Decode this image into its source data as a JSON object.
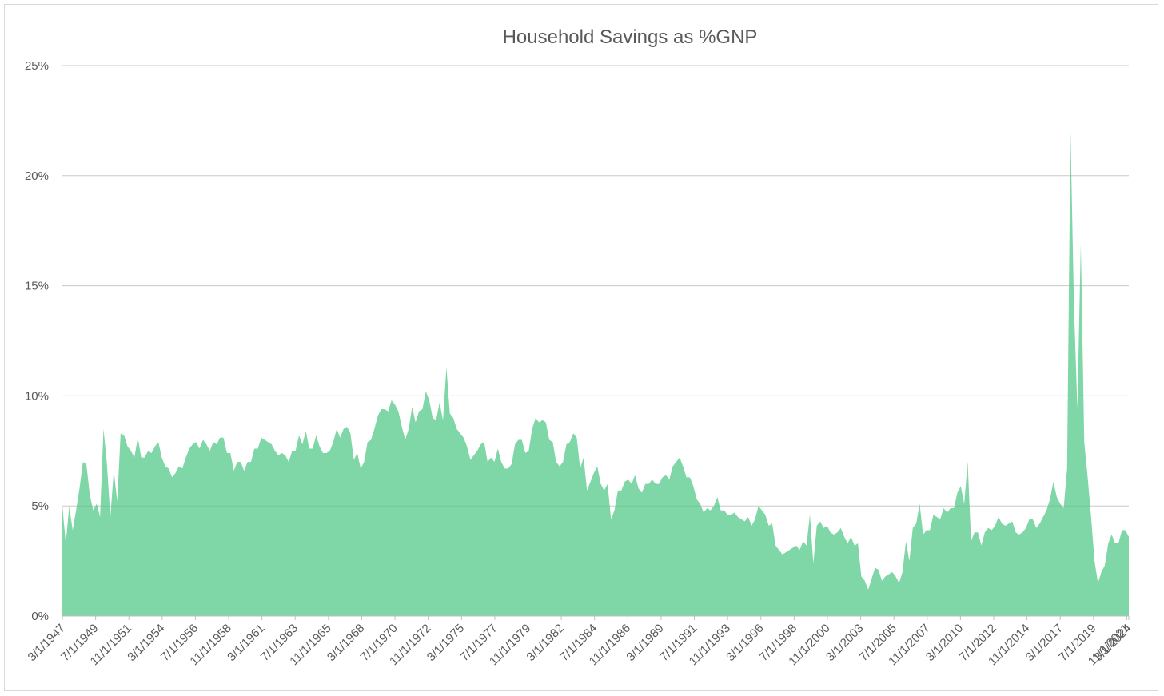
{
  "chart_data": {
    "type": "area",
    "title": "Household Savings as %GNP",
    "xlabel": "",
    "ylabel": "",
    "ylim": [
      0,
      25
    ],
    "y_tick_labels": [
      "0%",
      "5%",
      "10%",
      "15%",
      "20%",
      "25%"
    ],
    "x_tick_labels": [
      "3/1/1947",
      "7/1/1949",
      "11/1/1951",
      "3/1/1954",
      "7/1/1956",
      "11/1/1958",
      "3/1/1961",
      "7/1/1963",
      "11/1/1965",
      "3/1/1968",
      "7/1/1970",
      "11/1/1972",
      "3/1/1975",
      "7/1/1977",
      "11/1/1979",
      "3/1/1982",
      "7/1/1984",
      "11/1/1986",
      "3/1/1989",
      "7/1/1991",
      "11/1/1993",
      "3/1/1996",
      "7/1/1998",
      "11/1/2000",
      "3/1/2003",
      "7/1/2005",
      "11/1/2007",
      "3/1/2010",
      "7/1/2012",
      "11/1/2014",
      "3/1/2017",
      "7/1/2019",
      "11/1/2021",
      "3/1/2024"
    ],
    "grid": true,
    "legend": "none",
    "color": "#7fd6a6",
    "series": [
      {
        "x": [
          "1947-03",
          "1947-06",
          "1947-09",
          "1947-12",
          "1948-03",
          "1948-06",
          "1948-09",
          "1948-12",
          "1949-03",
          "1949-06",
          "1949-09",
          "1949-12",
          "1950-03",
          "1950-06",
          "1950-09",
          "1950-12",
          "1951-03",
          "1951-06",
          "1951-09",
          "1951-12",
          "1952-03",
          "1952-06",
          "1952-09",
          "1952-12",
          "1953-03",
          "1953-06",
          "1953-09",
          "1953-12",
          "1954-03",
          "1954-06",
          "1954-09",
          "1954-12",
          "1955-03",
          "1955-06",
          "1955-09",
          "1955-12",
          "1956-03",
          "1956-06",
          "1956-09",
          "1956-12",
          "1957-03",
          "1957-06",
          "1957-09",
          "1957-12",
          "1958-03",
          "1958-06",
          "1958-09",
          "1958-12",
          "1959-03",
          "1959-06",
          "1959-09",
          "1959-12",
          "1960-03",
          "1960-06",
          "1960-09",
          "1960-12",
          "1961-03",
          "1961-06",
          "1961-09",
          "1961-12",
          "1962-03",
          "1962-06",
          "1962-09",
          "1962-12",
          "1963-03",
          "1963-06",
          "1963-09",
          "1963-12",
          "1964-03",
          "1964-06",
          "1964-09",
          "1964-12",
          "1965-03",
          "1965-06",
          "1965-09",
          "1965-12",
          "1966-03",
          "1966-06",
          "1966-09",
          "1966-12",
          "1967-03",
          "1967-06",
          "1967-09",
          "1967-12",
          "1968-03",
          "1968-06",
          "1968-09",
          "1968-12",
          "1969-03",
          "1969-06",
          "1969-09",
          "1969-12",
          "1970-03",
          "1970-06",
          "1970-09",
          "1970-12",
          "1971-03",
          "1971-06",
          "1971-09",
          "1971-12",
          "1972-03",
          "1972-06",
          "1972-09",
          "1972-12",
          "1973-03",
          "1973-06",
          "1973-09",
          "1973-12",
          "1974-03",
          "1974-06",
          "1974-09",
          "1974-12",
          "1975-03",
          "1975-06",
          "1975-09",
          "1975-12",
          "1976-03",
          "1976-06",
          "1976-09",
          "1976-12",
          "1977-03",
          "1977-06",
          "1977-09",
          "1977-12",
          "1978-03",
          "1978-06",
          "1978-09",
          "1978-12",
          "1979-03",
          "1979-06",
          "1979-09",
          "1979-12",
          "1980-03",
          "1980-06",
          "1980-09",
          "1980-12",
          "1981-03",
          "1981-06",
          "1981-09",
          "1981-12",
          "1982-03",
          "1982-06",
          "1982-09",
          "1982-12",
          "1983-03",
          "1983-06",
          "1983-09",
          "1983-12",
          "1984-03",
          "1984-06",
          "1984-09",
          "1984-12",
          "1985-03",
          "1985-06",
          "1985-09",
          "1985-12",
          "1986-03",
          "1986-06",
          "1986-09",
          "1986-12",
          "1987-03",
          "1987-06",
          "1987-09",
          "1987-12",
          "1988-03",
          "1988-06",
          "1988-09",
          "1988-12",
          "1989-03",
          "1989-06",
          "1989-09",
          "1989-12",
          "1990-03",
          "1990-06",
          "1990-09",
          "1990-12",
          "1991-03",
          "1991-06",
          "1991-09",
          "1991-12",
          "1992-03",
          "1992-06",
          "1992-09",
          "1992-12",
          "1993-03",
          "1993-06",
          "1993-09",
          "1993-12",
          "1994-03",
          "1994-06",
          "1994-09",
          "1994-12",
          "1995-03",
          "1995-06",
          "1995-09",
          "1995-12",
          "1996-03",
          "1996-06",
          "1996-09",
          "1996-12",
          "1997-03",
          "1997-06",
          "1997-09",
          "1997-12",
          "1998-03",
          "1998-06",
          "1998-09",
          "1998-12",
          "1999-03",
          "1999-06",
          "1999-09",
          "1999-12",
          "2000-03",
          "2000-06",
          "2000-09",
          "2000-12",
          "2001-03",
          "2001-06",
          "2001-09",
          "2001-12",
          "2002-03",
          "2002-06",
          "2002-09",
          "2002-12",
          "2003-03",
          "2003-06",
          "2003-09",
          "2003-12",
          "2004-03",
          "2004-06",
          "2004-09",
          "2004-12",
          "2005-03",
          "2005-06",
          "2005-09",
          "2005-12",
          "2006-03",
          "2006-06",
          "2006-09",
          "2006-12",
          "2007-03",
          "2007-06",
          "2007-09",
          "2007-12",
          "2008-03",
          "2008-06",
          "2008-09",
          "2008-12",
          "2009-03",
          "2009-06",
          "2009-09",
          "2009-12",
          "2010-03",
          "2010-06",
          "2010-09",
          "2010-12",
          "2011-03",
          "2011-06",
          "2011-09",
          "2011-12",
          "2012-03",
          "2012-06",
          "2012-09",
          "2012-12",
          "2013-03",
          "2013-06",
          "2013-09",
          "2013-12",
          "2014-03",
          "2014-06",
          "2014-09",
          "2014-12",
          "2015-03",
          "2015-06",
          "2015-09",
          "2015-12",
          "2016-03",
          "2016-06",
          "2016-09",
          "2016-12",
          "2017-03",
          "2017-06",
          "2017-09",
          "2017-12",
          "2018-03",
          "2018-06",
          "2018-09",
          "2018-12",
          "2019-03",
          "2019-06",
          "2019-09",
          "2019-12",
          "2020-03",
          "2020-06",
          "2020-09",
          "2020-12",
          "2021-03",
          "2021-06",
          "2021-09",
          "2021-12",
          "2022-03",
          "2022-06",
          "2022-09",
          "2022-12",
          "2023-03",
          "2023-06",
          "2023-09",
          "2023-12",
          "2024-03",
          "2024-06",
          "2024-09",
          "2024-12"
        ],
        "values": [
          5.0,
          3.3,
          5.0,
          3.9,
          4.8,
          5.8,
          7.0,
          6.9,
          5.5,
          4.8,
          5.1,
          4.5,
          8.5,
          6.9,
          4.5,
          6.6,
          5.2,
          8.3,
          8.2,
          7.7,
          7.5,
          7.2,
          8.1,
          7.2,
          7.2,
          7.5,
          7.4,
          7.7,
          7.9,
          7.2,
          6.8,
          6.7,
          6.3,
          6.5,
          6.8,
          6.7,
          7.2,
          7.6,
          7.8,
          7.9,
          7.6,
          8.0,
          7.8,
          7.5,
          7.9,
          7.8,
          8.1,
          8.1,
          7.4,
          7.4,
          6.6,
          7.0,
          7.0,
          6.6,
          7.0,
          7.0,
          7.6,
          7.6,
          8.1,
          8.0,
          7.9,
          7.8,
          7.5,
          7.3,
          7.4,
          7.3,
          7.0,
          7.5,
          7.5,
          8.2,
          7.8,
          8.4,
          7.6,
          7.6,
          8.2,
          7.7,
          7.4,
          7.4,
          7.5,
          7.9,
          8.5,
          8.1,
          8.5,
          8.6,
          8.3,
          7.1,
          7.4,
          6.7,
          7.0,
          7.9,
          8.0,
          8.5,
          9.1,
          9.4,
          9.4,
          9.3,
          9.8,
          9.6,
          9.3,
          8.6,
          8.0,
          8.5,
          9.5,
          8.8,
          9.3,
          9.4,
          10.2,
          9.8,
          9.0,
          8.9,
          9.7,
          8.9,
          11.3,
          9.2,
          9.0,
          8.5,
          8.3,
          8.1,
          7.7,
          7.1,
          7.3,
          7.5,
          7.8,
          7.9,
          7.0,
          7.2,
          7.0,
          7.6,
          7.0,
          6.7,
          6.7,
          6.9,
          7.8,
          8.0,
          8.0,
          7.4,
          7.5,
          8.5,
          9.0,
          8.8,
          8.9,
          8.8,
          8.0,
          7.9,
          7.0,
          6.8,
          7.0,
          7.8,
          7.9,
          8.3,
          8.1,
          6.7,
          7.2,
          5.7,
          6.1,
          6.5,
          6.8,
          6.0,
          5.7,
          6.0,
          4.4,
          4.8,
          5.7,
          5.7,
          6.1,
          6.2,
          6.0,
          6.4,
          5.8,
          5.6,
          6.0,
          6.0,
          6.2,
          6.0,
          6.0,
          6.3,
          6.4,
          6.2,
          6.8,
          7.0,
          7.2,
          6.8,
          6.3,
          6.3,
          5.9,
          5.3,
          5.1,
          4.7,
          4.9,
          4.8,
          5.0,
          5.4,
          4.8,
          4.8,
          4.6,
          4.6,
          4.7,
          4.5,
          4.4,
          4.3,
          4.5,
          4.1,
          4.4,
          5.0,
          4.8,
          4.6,
          4.1,
          4.2,
          3.2,
          3.0,
          2.8,
          2.9,
          3.0,
          3.1,
          3.2,
          3.0,
          3.4,
          3.2,
          4.6,
          2.4,
          4.1,
          4.3,
          4.0,
          4.1,
          3.8,
          3.7,
          3.8,
          4.0,
          3.6,
          3.3,
          3.6,
          3.2,
          3.3,
          1.8,
          1.6,
          1.2,
          1.7,
          2.2,
          2.1,
          1.6,
          1.8,
          1.9,
          2.0,
          1.8,
          1.5,
          2.0,
          3.4,
          2.5,
          4.0,
          4.2,
          5.1,
          3.7,
          3.9,
          3.9,
          4.6,
          4.5,
          4.4,
          4.9,
          4.7,
          4.9,
          4.9,
          5.6,
          5.9,
          5.1,
          7.0,
          3.4,
          3.8,
          3.8,
          3.2,
          3.8,
          4.0,
          3.9,
          4.1,
          4.5,
          4.2,
          4.1,
          4.2,
          4.3,
          3.8,
          3.7,
          3.8,
          4.0,
          4.4,
          4.4,
          4.0,
          4.2,
          4.5,
          4.8,
          5.3,
          6.1,
          5.4,
          5.1,
          4.9,
          6.7,
          22.0,
          14.1,
          9.4,
          16.9,
          7.9,
          6.3,
          4.5,
          2.5,
          1.5,
          2.0,
          2.3,
          3.3,
          3.7,
          3.3,
          3.3,
          3.9,
          3.9,
          3.6
        ]
      }
    ]
  }
}
